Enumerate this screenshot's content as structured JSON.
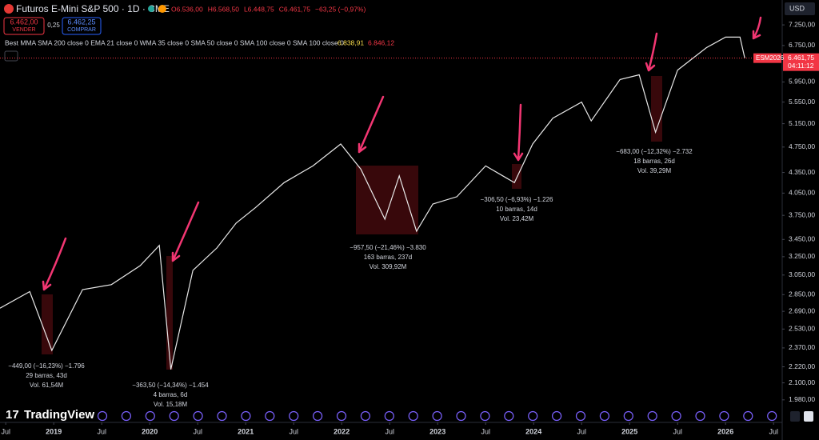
{
  "chart_data": {
    "type": "line",
    "title": "Futuros E-Mini S&P 500 · 1D · CME",
    "ohlc": [
      "O6.536,00",
      "H6.568,50",
      "L6.448,75",
      "C6.461,75",
      "−63,25 (−0,97%)"
    ],
    "sell": {
      "price": "6.462,00",
      "label": "VENDER"
    },
    "spread": "0,25",
    "buy": {
      "price": "6.462,25",
      "label": "COMPRAR"
    },
    "indicator": {
      "label": "Best MMA SMA 200 close 0 EMA 21 close 0 WMA 35 close 0 SMA 50 close 0 SMA 100 close 0 SMA 100 close 0",
      "values": [
        "6.838,91",
        "6.846,12"
      ]
    },
    "currency": "USD",
    "last_price": {
      "value": 6461.75,
      "label": "6.461,75",
      "countdown": "04:11:12",
      "symbol": "ESM2026"
    },
    "brand": "TradingView",
    "log_scale": true,
    "grid": false,
    "color": "#e8e8e8",
    "x": [
      2018.44,
      2018.75,
      2018.98,
      2019.3,
      2019.6,
      2019.9,
      2020.1,
      2020.22,
      2020.45,
      2020.7,
      2020.9,
      2021.1,
      2021.4,
      2021.7,
      2021.99,
      2022.2,
      2022.45,
      2022.6,
      2022.78,
      2022.95,
      2023.2,
      2023.5,
      2023.8,
      2023.99,
      2024.2,
      2024.5,
      2024.6,
      2024.9,
      2025.1,
      2025.27,
      2025.5,
      2025.8,
      2026.0,
      2026.15,
      2026.2
    ],
    "values": [
      2720,
      2880,
      2350,
      2900,
      2950,
      3150,
      3380,
      2200,
      3100,
      3350,
      3650,
      3850,
      4200,
      4450,
      4800,
      4400,
      3700,
      4300,
      3550,
      3900,
      4000,
      4450,
      4200,
      4800,
      5250,
      5550,
      5200,
      6000,
      6100,
      5000,
      6200,
      6700,
      6950,
      6950,
      6462
    ],
    "xlim": [
      2018.44,
      2026.59
    ],
    "xticks": [
      {
        "value": 2018.5,
        "label": "Jul"
      },
      2019,
      {
        "value": 2019.5,
        "label": "Jul"
      },
      2020,
      {
        "value": 2020.5,
        "label": "Jul"
      },
      2021,
      {
        "value": 2021.5,
        "label": "Jul"
      },
      2022,
      {
        "value": 2022.5,
        "label": "Jul"
      },
      2023,
      {
        "value": 2023.5,
        "label": "Jul"
      },
      2024,
      {
        "value": 2024.5,
        "label": "Jul"
      },
      2025,
      {
        "value": 2025.5,
        "label": "Jul"
      },
      2026,
      {
        "value": 2026.5,
        "label": "Jul"
      }
    ],
    "ylim": [
      1925,
      7435
    ],
    "yticks": [
      {
        "value": 1980,
        "label": "1.980,00"
      },
      {
        "value": 2100,
        "label": "2.100,00"
      },
      {
        "value": 2220,
        "label": "2.220,00"
      },
      {
        "value": 2370,
        "label": "2.370,00"
      },
      {
        "value": 2530,
        "label": "2.530,00"
      },
      {
        "value": 2690,
        "label": "2.690,00"
      },
      {
        "value": 2850,
        "label": "2.850,00"
      },
      {
        "value": 3050,
        "label": "3.050,00"
      },
      {
        "value": 3250,
        "label": "3.250,00"
      },
      {
        "value": 3450,
        "label": "3.450,00"
      },
      {
        "value": 3750,
        "label": "3.750,00"
      },
      {
        "value": 4050,
        "label": "4.050,00"
      },
      {
        "value": 4350,
        "label": "4.350,00"
      },
      {
        "value": 4750,
        "label": "4.750,00"
      },
      {
        "value": 5150,
        "label": "5.150,00"
      },
      {
        "value": 5550,
        "label": "5.550,00"
      },
      {
        "value": 5950,
        "label": "5.950,00"
      },
      {
        "value": 6750,
        "label": "6.750,00"
      },
      {
        "value": 7250,
        "label": "7.250,00"
      }
    ],
    "annotations": [
      [
        "−449,00 (−16,23%) −1.796",
        "29 barras, 43d",
        "Vol. 61,54M"
      ],
      [
        "−363,50 (−14,34%) −1.454",
        "4 barras, 6d",
        "Vol. 15,18M"
      ],
      [
        "−957,50 (−21,46%) −3.830",
        "163 barras, 237d",
        "Vol. 309,92M"
      ],
      [
        "−306,50 (−6,93%) −1.226",
        "10 barras, 14d",
        "Vol. 23,42M"
      ],
      [
        "−683,00 (−12,32%) −2.732",
        "18 barras, 26d",
        "Vol. 39,29M"
      ]
    ]
  }
}
